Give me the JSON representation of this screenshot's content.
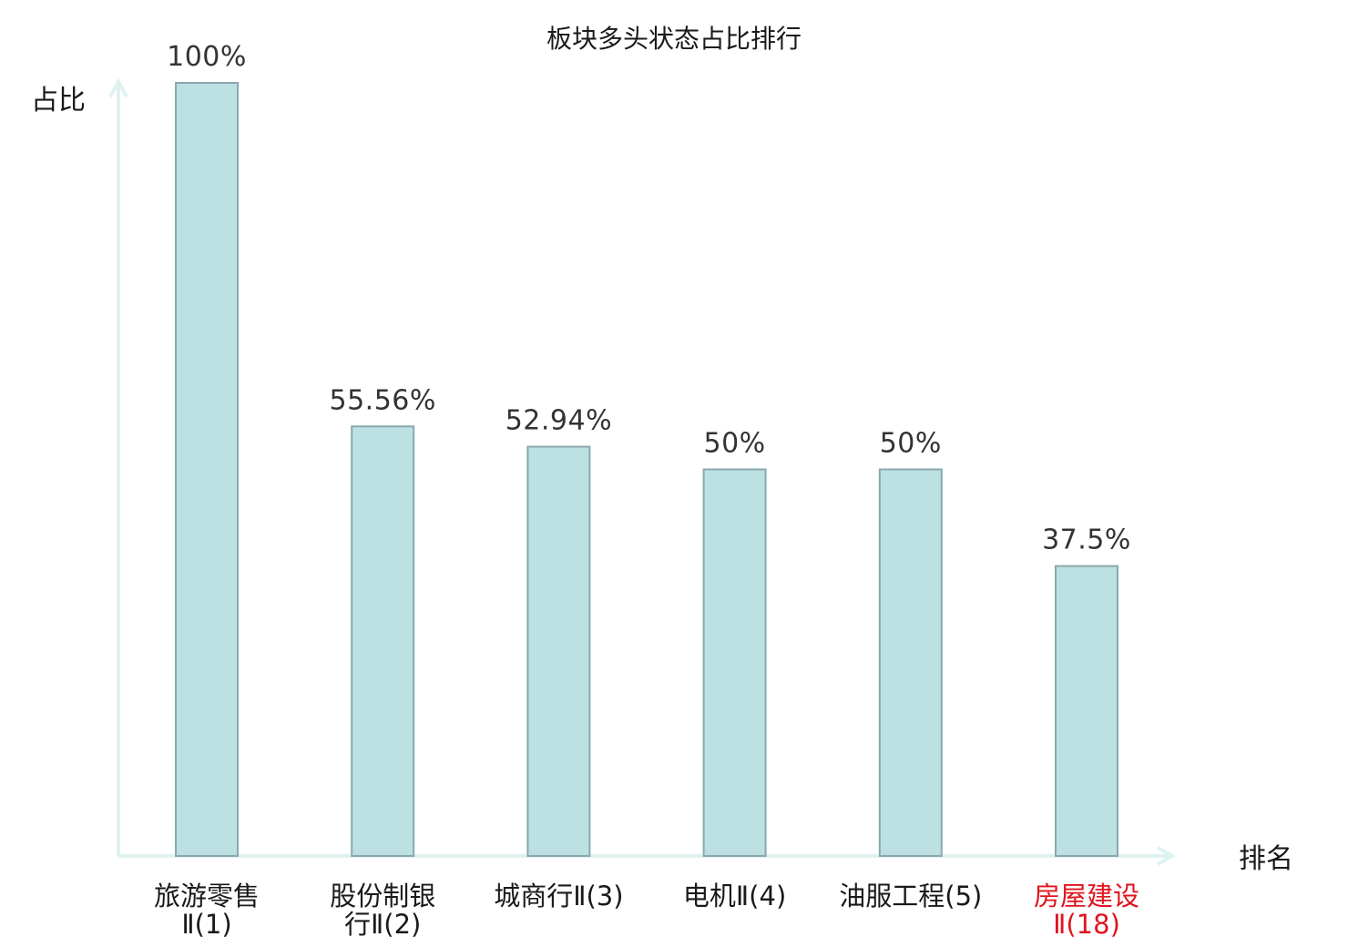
{
  "chart_data": {
    "type": "bar",
    "title": "板块多头状态占比排行",
    "ylabel": "占比",
    "xlabel": "排名",
    "ylim": [
      0,
      100
    ],
    "grid": false,
    "categories": [
      {
        "name": "旅游零售",
        "suffix": "Ⅱ(1)",
        "line1": "旅游零售",
        "line2": "Ⅱ(1)",
        "highlight": false
      },
      {
        "name": "股份制银行",
        "suffix": "Ⅱ(2)",
        "line1": "股份制银",
        "line2": "行Ⅱ(2)",
        "highlight": false
      },
      {
        "name": "城商行",
        "suffix": "Ⅱ(3)",
        "line1": "城商行Ⅱ(3)",
        "line2": "",
        "highlight": false
      },
      {
        "name": "电机",
        "suffix": "Ⅱ(4)",
        "line1": "电机Ⅱ(4)",
        "line2": "",
        "highlight": false
      },
      {
        "name": "油服工程",
        "suffix": "(5)",
        "line1": "油服工程(5)",
        "line2": "",
        "highlight": false
      },
      {
        "name": "房屋建设",
        "suffix": "Ⅱ(18)",
        "line1": "房屋建设",
        "line2": "Ⅱ(18)",
        "highlight": true
      }
    ],
    "values": [
      100,
      55.56,
      52.94,
      50,
      50,
      37.5
    ],
    "value_labels": [
      "100%",
      "55.56%",
      "52.94%",
      "50%",
      "50%",
      "37.5%"
    ],
    "colors": {
      "bar_fill": "#bde0e3",
      "bar_stroke": "#8aa8ac",
      "axis": "#dff2ef",
      "highlight_text": "#e0141e"
    }
  }
}
